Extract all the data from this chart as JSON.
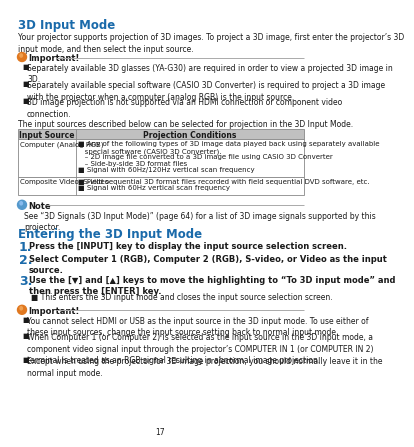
{
  "page_num": "17",
  "title": "3D Input Mode",
  "title_color": "#1a6aaa",
  "body_text": "Your projector supports projection of 3D images. To project a 3D image, first enter the projector’s 3D\ninput mode, and then select the input source.",
  "important1_label": "Important!",
  "important1_bullets": [
    "Separately available 3D glasses (YA-G30) are required in order to view a projected 3D image in\n3D.",
    "Separately available special software (CASIO 3D Converter) is required to project a 3D image\nwith the projector when a computer (analog RGB) is the input source.",
    "3D image projection is not supported via an HDMI connection or component video\nconnection."
  ],
  "table_intro": "The input sources described below can be selected for projection in the 3D Input Mode.",
  "table_header": [
    "Input Source",
    "Projection Conditions"
  ],
  "table_rows": [
    {
      "source": "Computer (Analog RGB)",
      "conditions": [
        "■ Any of the following types of 3D image data played back using separately available\n   special software (CASIO 3D Converter).",
        "   – 2D image file converted to a 3D image file using CASIO 3D Converter",
        "   – Side-by-side 3D format files",
        "■ Signal with 60Hz/120Hz vertical scan frequency"
      ]
    },
    {
      "source": "Composite Video, S-video",
      "conditions": [
        "■ Field sequential 3D format files recorded with field sequential DVD software, etc.",
        "■ Signal with 60Hz vertical scan frequency"
      ]
    }
  ],
  "note_label": "Note",
  "note_text": "See “3D Signals (3D Input Mode)” (page 64) for a list of 3D image signals supported by this\nprojector.",
  "section2_title": "Entering the 3D Input Mode",
  "steps": [
    {
      "num": "1.",
      "text": "Press the [INPUT] key to display the input source selection screen."
    },
    {
      "num": "2.",
      "text": "Select Computer 1 (RGB), Computer 2 (RGB), S-video, or Video as the input\nsource."
    },
    {
      "num": "3.",
      "text": "Use the [▼] and [▲] keys to move the highlighting to “To 3D input mode” and\nthen press the [ENTER] key.",
      "sub": "This enters the 3D input mode and closes the input source selection screen."
    }
  ],
  "important2_label": "Important!",
  "important2_bullets": [
    "You cannot select HDMI or USB as the input source in the 3D input mode. To use either of\nthese input sources, change the input source setting back to normal input mode.",
    "When Computer 1 (or Computer 2) is selected as the input source in the 3D input mode, a\ncomponent video signal input through the projector’s COMPUTER IN 1 (or COMPUTER IN 2)\nterminal is treated as an RGB signal resulting in abnormal image projection.",
    "Except when using the projector for 3D image projection, you should normally leave it in the\nnormal input mode."
  ],
  "bg_color": "#ffffff",
  "text_color": "#1a1a1a",
  "header_bg": "#c0c0c0",
  "table_border": "#888888",
  "note_icon_color": "#5599cc",
  "important_icon_color": "#e07820",
  "section_title_color": "#1a6aaa",
  "line_color": "#aaaaaa"
}
